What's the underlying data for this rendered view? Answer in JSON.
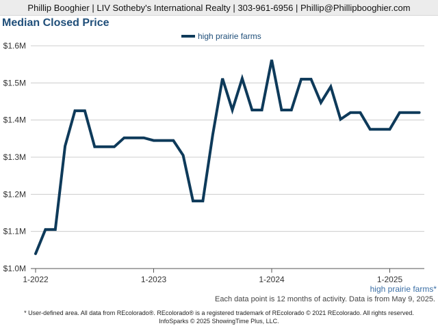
{
  "header": {
    "text": "Phillip Booghier | LIV Sotheby's International Realty | 303-961-6956 | Phillip@Phillipbooghier.com"
  },
  "chart_title": "Median Closed Price",
  "legend_label": "high prairie farms",
  "area_label": "high prairie farms*",
  "activity_note": "Each data point is 12 months of activity. Data is from May 9, 2025.",
  "footer": {
    "line1": "* User-defined area. All data from REcolorado®. REcolorado® is a registered trademark of REcolorado © 2021 REcolorado. All rights reserved.",
    "line2": "InfoSparks © 2025 ShowingTime Plus, LLC."
  },
  "colors": {
    "series": "#0e3a5a",
    "title": "#1f4e79",
    "grid": "#cccccc"
  },
  "chart_data": {
    "type": "line",
    "title": "Median Closed Price",
    "xlabel": "",
    "ylabel": "",
    "ylim": [
      1000000,
      1600000
    ],
    "xlim": [
      "2022-01",
      "2025-04"
    ],
    "x_ticks": [
      "1-2022",
      "1-2023",
      "1-2024",
      "1-2025"
    ],
    "y_ticks": [
      "$1.0M",
      "$1.1M",
      "$1.2M",
      "$1.3M",
      "$1.4M",
      "$1.5M",
      "$1.6M"
    ],
    "grid": true,
    "legend_position": "top-center",
    "series": [
      {
        "name": "high prairie farms",
        "x": [
          "2022-01",
          "2022-02",
          "2022-03",
          "2022-04",
          "2022-05",
          "2022-06",
          "2022-07",
          "2022-08",
          "2022-09",
          "2022-10",
          "2022-11",
          "2022-12",
          "2023-01",
          "2023-02",
          "2023-03",
          "2023-04",
          "2023-05",
          "2023-06",
          "2023-07",
          "2023-08",
          "2023-09",
          "2023-10",
          "2023-11",
          "2023-12",
          "2024-01",
          "2024-02",
          "2024-03",
          "2024-04",
          "2024-05",
          "2024-06",
          "2024-07",
          "2024-08",
          "2024-09",
          "2024-10",
          "2024-11",
          "2024-12",
          "2025-01",
          "2025-02",
          "2025-03",
          "2025-04"
        ],
        "values": [
          1040000,
          1105000,
          1105000,
          1330000,
          1425000,
          1425000,
          1328000,
          1328000,
          1328000,
          1352000,
          1352000,
          1352000,
          1345000,
          1345000,
          1345000,
          1305000,
          1182000,
          1182000,
          1360000,
          1512000,
          1427000,
          1512000,
          1427000,
          1427000,
          1562000,
          1427000,
          1427000,
          1510000,
          1510000,
          1447000,
          1490000,
          1402000,
          1420000,
          1420000,
          1375000,
          1375000,
          1375000,
          1420000,
          1420000,
          1420000
        ]
      }
    ]
  }
}
